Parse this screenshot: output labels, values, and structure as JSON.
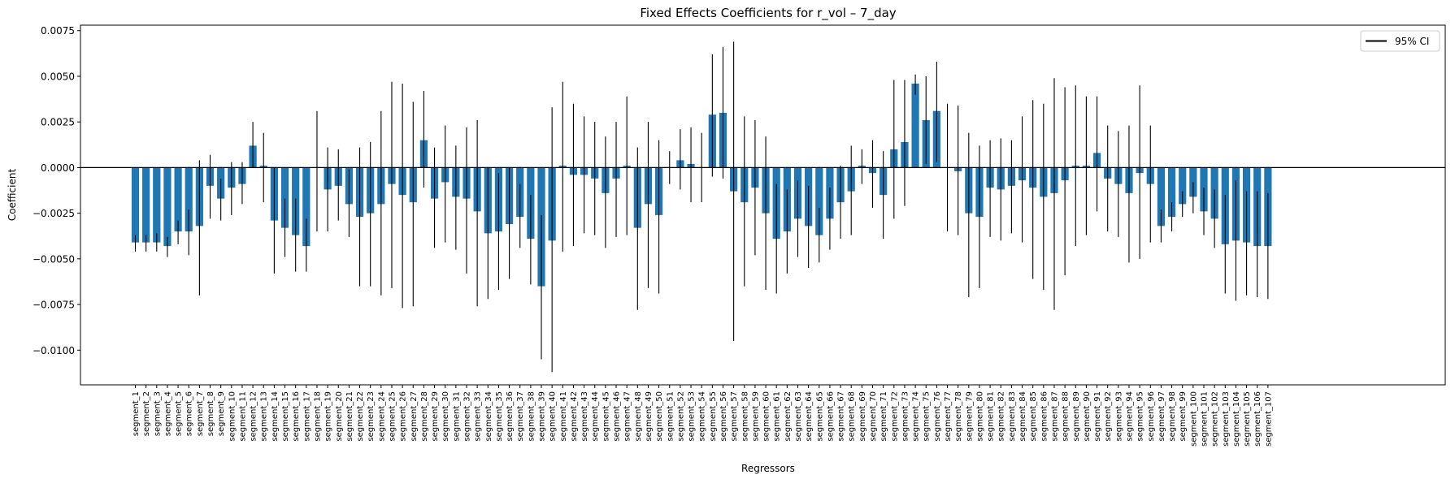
{
  "chart_data": {
    "type": "bar",
    "title": "Fixed Effects Coefficients for r_vol – 7_day",
    "xlabel": "Regressors",
    "ylabel": "Coefficient",
    "ylim": [
      -0.0119,
      0.0078
    ],
    "yticks": [
      -0.01,
      -0.0075,
      -0.005,
      -0.0025,
      0.0,
      0.0025,
      0.005,
      0.0075
    ],
    "ytick_labels": [
      "−0.0100",
      "−0.0075",
      "−0.0050",
      "−0.0025",
      "0.0000",
      "0.0025",
      "0.0050",
      "0.0075"
    ],
    "grid": false,
    "legend": {
      "placement": "top-right",
      "entries": [
        {
          "label": "95% CI",
          "type": "line",
          "color": "#000000"
        }
      ]
    },
    "bar_color": "#1f77b4",
    "errorbar_color": "#000000",
    "categories": [
      "segment_1",
      "segment_2",
      "segment_3",
      "segment_4",
      "segment_5",
      "segment_6",
      "segment_7",
      "segment_8",
      "segment_9",
      "segment_10",
      "segment_11",
      "segment_12",
      "segment_13",
      "segment_14",
      "segment_15",
      "segment_16",
      "segment_17",
      "segment_18",
      "segment_19",
      "segment_20",
      "segment_21",
      "segment_22",
      "segment_23",
      "segment_24",
      "segment_25",
      "segment_26",
      "segment_27",
      "segment_28",
      "segment_29",
      "segment_30",
      "segment_31",
      "segment_32",
      "segment_33",
      "segment_34",
      "segment_35",
      "segment_36",
      "segment_37",
      "segment_38",
      "segment_39",
      "segment_40",
      "segment_41",
      "segment_42",
      "segment_43",
      "segment_44",
      "segment_45",
      "segment_46",
      "segment_47",
      "segment_48",
      "segment_49",
      "segment_50",
      "segment_51",
      "segment_52",
      "segment_53",
      "segment_54",
      "segment_55",
      "segment_56",
      "segment_57",
      "segment_58",
      "segment_59",
      "segment_60",
      "segment_61",
      "segment_62",
      "segment_63",
      "segment_64",
      "segment_65",
      "segment_66",
      "segment_67",
      "segment_68",
      "segment_69",
      "segment_70",
      "segment_71",
      "segment_72",
      "segment_73",
      "segment_74",
      "segment_75",
      "segment_76",
      "segment_77",
      "segment_78",
      "segment_79",
      "segment_80",
      "segment_81",
      "segment_82",
      "segment_83",
      "segment_84",
      "segment_85",
      "segment_86",
      "segment_87",
      "segment_88",
      "segment_89",
      "segment_90",
      "segment_91",
      "segment_92",
      "segment_93",
      "segment_94",
      "segment_95",
      "segment_96",
      "segment_97",
      "segment_98",
      "segment_99",
      "segment_100",
      "segment_101",
      "segment_102",
      "segment_103",
      "segment_104",
      "segment_105",
      "segment_106",
      "segment_107"
    ],
    "values": [
      -0.0041,
      -0.0041,
      -0.0041,
      -0.0043,
      -0.0035,
      -0.0035,
      -0.0032,
      -0.001,
      -0.0017,
      -0.0011,
      -0.0009,
      0.0012,
      0.0001,
      -0.0029,
      -0.0033,
      -0.0037,
      -0.0043,
      0.0,
      -0.0012,
      -0.001,
      -0.002,
      -0.0027,
      -0.0025,
      -0.002,
      -0.0009,
      -0.0015,
      -0.0019,
      0.0015,
      -0.0017,
      -0.0008,
      -0.0016,
      -0.0017,
      -0.0024,
      -0.0036,
      -0.0035,
      -0.0031,
      -0.0027,
      -0.0039,
      -0.0065,
      -0.004,
      0.0001,
      -0.0004,
      -0.0004,
      -0.0006,
      -0.0014,
      -0.0006,
      0.0001,
      -0.0033,
      -0.002,
      -0.0026,
      0.0,
      0.0004,
      0.0002,
      0.0,
      0.0029,
      0.003,
      -0.0013,
      -0.0019,
      -0.0011,
      -0.0025,
      -0.0039,
      -0.0035,
      -0.0028,
      -0.0032,
      -0.0037,
      -0.0028,
      -0.0019,
      -0.0013,
      0.0001,
      -0.0003,
      -0.0015,
      0.001,
      0.0014,
      0.0046,
      0.0026,
      0.0031,
      0.0,
      -0.0002,
      -0.0025,
      -0.0027,
      -0.0011,
      -0.0012,
      -0.001,
      -0.0007,
      -0.0011,
      -0.0016,
      -0.0014,
      -0.0007,
      0.0001,
      0.0001,
      0.0008,
      -0.0006,
      -0.0009,
      -0.0014,
      -0.0003,
      -0.0009,
      -0.0032,
      -0.0027,
      -0.002,
      -0.0016,
      -0.0024,
      -0.0028,
      -0.0042,
      -0.004,
      -0.0041,
      -0.0043,
      -0.0043
    ],
    "ci_lower": [
      -0.0046,
      -0.0046,
      -0.0046,
      -0.0049,
      -0.0042,
      -0.0048,
      -0.007,
      -0.0028,
      -0.0029,
      -0.0026,
      -0.002,
      0.0,
      -0.0019,
      -0.0058,
      -0.0049,
      -0.0057,
      -0.0057,
      -0.0035,
      -0.0035,
      -0.0029,
      -0.0038,
      -0.0065,
      -0.0065,
      -0.007,
      -0.0066,
      -0.0077,
      -0.0076,
      -0.0011,
      -0.0044,
      -0.0041,
      -0.0045,
      -0.0058,
      -0.0076,
      -0.0072,
      -0.0067,
      -0.0061,
      -0.0044,
      -0.0064,
      -0.0105,
      -0.0112,
      -0.0046,
      -0.0043,
      -0.0036,
      -0.0037,
      -0.0044,
      -0.0038,
      -0.0037,
      -0.0078,
      -0.0066,
      -0.0069,
      -0.0009,
      -0.0012,
      -0.0019,
      -0.0019,
      -0.0005,
      -0.0006,
      -0.0095,
      -0.0065,
      -0.0048,
      -0.0067,
      -0.0069,
      -0.0058,
      -0.0049,
      -0.0055,
      -0.0052,
      -0.0045,
      -0.0039,
      -0.0037,
      -0.0009,
      -0.0022,
      -0.0039,
      -0.0028,
      -0.0021,
      0.004,
      0.0002,
      0.0003,
      -0.0035,
      -0.0037,
      -0.0071,
      -0.0066,
      -0.0038,
      -0.004,
      -0.0036,
      -0.0041,
      -0.0061,
      -0.0067,
      -0.0078,
      -0.0059,
      -0.0043,
      -0.0037,
      -0.0024,
      -0.0035,
      -0.0038,
      -0.0052,
      -0.005,
      -0.0041,
      -0.0041,
      -0.0035,
      -0.0027,
      -0.0025,
      -0.0037,
      -0.0044,
      -0.0069,
      -0.0073,
      -0.007,
      -0.0071,
      -0.0072
    ],
    "ci_upper": [
      -0.0037,
      -0.0037,
      -0.0036,
      -0.0038,
      -0.0029,
      -0.0023,
      0.0004,
      0.0007,
      -0.0006,
      0.0003,
      0.0003,
      0.0025,
      0.0019,
      0.0,
      -0.0017,
      -0.0017,
      -0.0028,
      0.0031,
      0.0011,
      0.001,
      -0.0001,
      0.0011,
      0.0014,
      0.0031,
      0.0047,
      0.0046,
      0.0036,
      0.0042,
      0.0011,
      0.0023,
      0.0012,
      0.0022,
      0.0026,
      0.0,
      -0.0003,
      0.0,
      -0.0009,
      -0.0015,
      -0.0026,
      0.0033,
      0.0047,
      0.0035,
      0.0028,
      0.0025,
      0.0017,
      0.0025,
      0.0039,
      0.0011,
      0.0025,
      0.0015,
      0.0009,
      0.0021,
      0.0022,
      0.0019,
      0.0062,
      0.0066,
      0.0069,
      0.0028,
      0.0026,
      0.0017,
      -0.0009,
      -0.0012,
      -0.0007,
      -0.001,
      -0.0022,
      -0.0011,
      0.0001,
      0.0012,
      0.001,
      0.0015,
      0.0009,
      0.0048,
      0.0048,
      0.0051,
      0.005,
      0.0058,
      0.0035,
      0.0034,
      0.0019,
      0.0012,
      0.0015,
      0.0016,
      0.0015,
      0.0028,
      0.0037,
      0.0035,
      0.0049,
      0.0044,
      0.0045,
      0.0039,
      0.0039,
      0.0023,
      0.002,
      0.0023,
      0.0045,
      0.0023,
      -0.0023,
      -0.0019,
      -0.0013,
      -0.0008,
      -0.0011,
      -0.0012,
      -0.0015,
      -0.0007,
      -0.0013,
      -0.0013,
      -0.0014
    ]
  }
}
